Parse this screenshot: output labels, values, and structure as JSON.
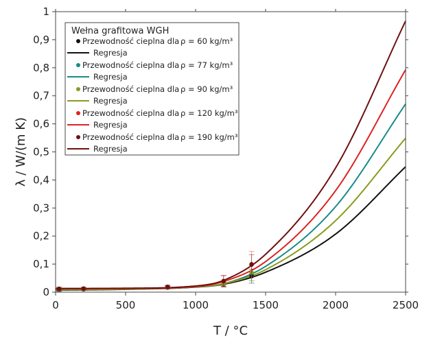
{
  "chart_data": {
    "type": "line",
    "xlabel": "T / °C",
    "ylabel": "λ / W/(m K)",
    "xlim": [
      0,
      2500
    ],
    "ylim": [
      0,
      1
    ],
    "xticks": [
      0,
      500,
      1000,
      1500,
      2000,
      2500
    ],
    "xtick_labels": [
      "0",
      "500",
      "1000",
      "1500",
      "2000",
      "2500"
    ],
    "yticks": [
      0,
      0.1,
      0.2,
      0.3,
      0.4,
      0.5,
      0.6,
      0.7,
      0.8,
      0.9,
      1.0
    ],
    "ytick_labels": [
      "0",
      "0,1",
      "0,2",
      "0,3",
      "0,4",
      "0,5",
      "0,6",
      "0,7",
      "0,8",
      "0,9",
      "1"
    ],
    "grid": false,
    "legend": {
      "title": "Wełna grafitowa WGH",
      "position": "top-left",
      "entries": [
        {
          "marker_label": "Przewodność cieplna dla",
          "density": "ρ = 60 kg/m³",
          "line_label": "Regresja"
        },
        {
          "marker_label": "Przewodność cieplna dla",
          "density": "ρ = 77 kg/m³",
          "line_label": "Regresja"
        },
        {
          "marker_label": "Przewodność cieplna dla",
          "density": "ρ = 90 kg/m³",
          "line_label": "Regresja"
        },
        {
          "marker_label": "Przewodność cieplna dla",
          "density": "ρ = 120 kg/m³",
          "line_label": "Regresja"
        },
        {
          "marker_label": "Przewodność cieplna dla",
          "density": "ρ = 190 kg/m³",
          "line_label": "Regresja"
        }
      ]
    },
    "series": [
      {
        "name": "ρ = 60 kg/m³",
        "color": "#111111",
        "points": [
          [
            25,
            0.008
          ],
          [
            200,
            0.01
          ],
          [
            800,
            0.016
          ],
          [
            1200,
            0.028
          ],
          [
            1400,
            0.057
          ]
        ],
        "errors": [
          0.005,
          0.004,
          0.005,
          0.009,
          0.025
        ],
        "regression_x": [
          0,
          500,
          1000,
          1200,
          1500,
          2000,
          2500
        ],
        "regression_y": [
          0.007,
          0.01,
          0.018,
          0.028,
          0.071,
          0.207,
          0.447
        ]
      },
      {
        "name": "ρ = 77 kg/m³",
        "color": "#1a8a8a",
        "points": [
          [
            25,
            0.009
          ],
          [
            200,
            0.011
          ],
          [
            800,
            0.017
          ],
          [
            1200,
            0.03
          ],
          [
            1400,
            0.068
          ]
        ],
        "errors": [
          0.005,
          0.004,
          0.005,
          0.01,
          0.028
        ],
        "regression_x": [
          0,
          500,
          1000,
          1200,
          1500,
          2000,
          2500
        ],
        "regression_y": [
          0.008,
          0.011,
          0.019,
          0.03,
          0.092,
          0.305,
          0.671
        ]
      },
      {
        "name": "ρ = 90 kg/m³",
        "color": "#8a9a1a",
        "points": [
          [
            25,
            0.01
          ],
          [
            200,
            0.011
          ],
          [
            800,
            0.017
          ],
          [
            1200,
            0.03
          ],
          [
            1400,
            0.07
          ]
        ],
        "errors": [
          0.005,
          0.004,
          0.005,
          0.01,
          0.03
        ],
        "regression_x": [
          0,
          500,
          1000,
          1200,
          1500,
          2000,
          2500
        ],
        "regression_y": [
          0.009,
          0.011,
          0.019,
          0.03,
          0.08,
          0.255,
          0.549
        ]
      },
      {
        "name": "ρ = 120 kg/m³",
        "color": "#dd2222",
        "points": [
          [
            25,
            0.011
          ],
          [
            200,
            0.012
          ],
          [
            800,
            0.018
          ],
          [
            1200,
            0.038
          ],
          [
            1400,
            0.1
          ]
        ],
        "errors": [
          0.006,
          0.004,
          0.006,
          0.02,
          0.045
        ],
        "regression_x": [
          0,
          500,
          1000,
          1200,
          1500,
          2000,
          2500
        ],
        "regression_y": [
          0.012,
          0.013,
          0.02,
          0.038,
          0.109,
          0.362,
          0.793
        ]
      },
      {
        "name": "ρ = 190 kg/m³",
        "color": "#6e1010",
        "points": [
          [
            25,
            0.012
          ],
          [
            200,
            0.013
          ],
          [
            800,
            0.019
          ],
          [
            1200,
            0.04
          ],
          [
            1400,
            0.098
          ]
        ],
        "errors": [
          0.006,
          0.005,
          0.006,
          0.02,
          0.035
        ],
        "regression_x": [
          0,
          500,
          1000,
          1200,
          1500,
          2000,
          2500
        ],
        "regression_y": [
          0.013,
          0.014,
          0.022,
          0.042,
          0.135,
          0.443,
          0.967
        ]
      }
    ]
  }
}
